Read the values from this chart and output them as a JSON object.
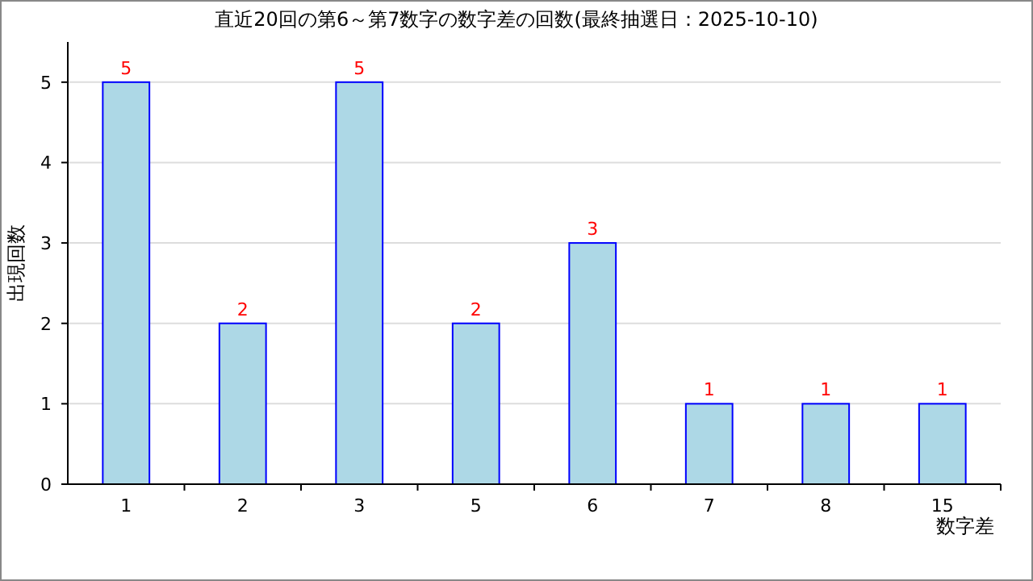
{
  "chart_data": {
    "type": "bar",
    "title": "直近20回の第6～第7数字の数字差の回数(最終抽選日：2025-10-10)",
    "xlabel": "数字差",
    "ylabel": "出現回数",
    "categories": [
      "1",
      "2",
      "3",
      "5",
      "6",
      "7",
      "8",
      "15"
    ],
    "series": [
      {
        "color": "#add8e6",
        "values": [
          5,
          2,
          5,
          2,
          3,
          1,
          1,
          1
        ]
      }
    ],
    "ylim": [
      0,
      5.5
    ],
    "yticks": [
      0,
      1,
      2,
      3,
      4,
      5
    ],
    "grid": "y",
    "data_labels": true
  }
}
